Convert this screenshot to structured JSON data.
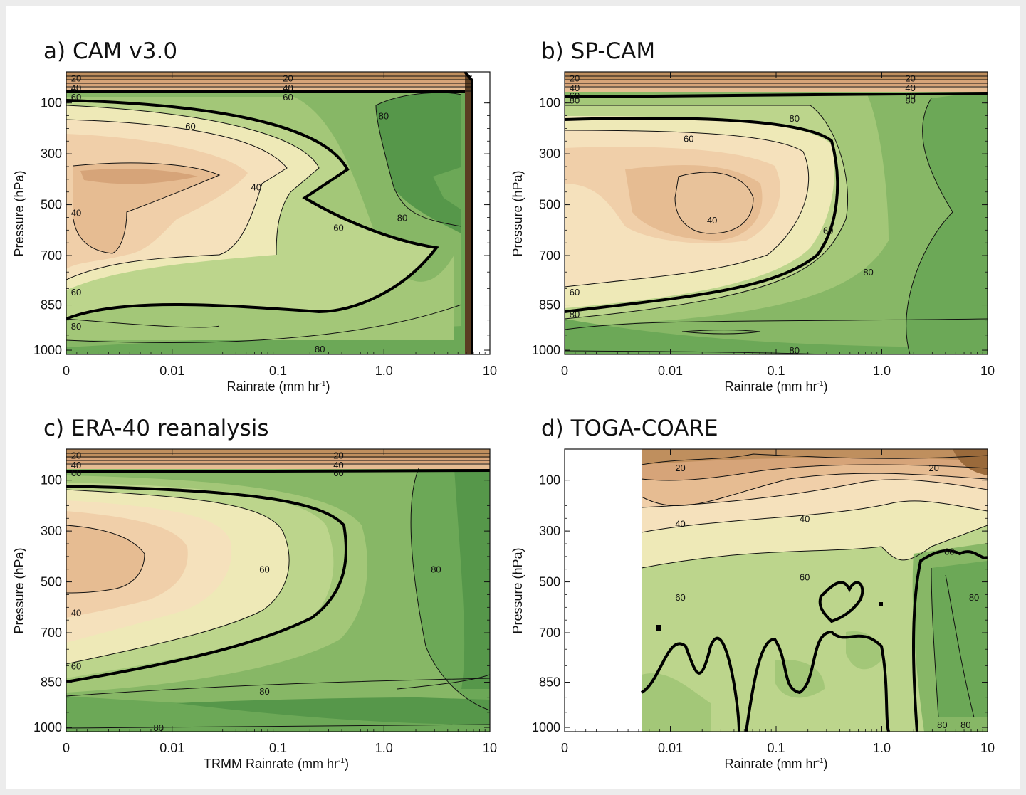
{
  "chart_data": [
    {
      "type": "contour",
      "title": "a)  CAM v3.0",
      "xlabel": "Rainrate (mm hr",
      "xlabel_sup": "-1",
      "xlabel_end": ")",
      "ylabel": "Pressure (hPa)",
      "x_ticks": [
        "0",
        "0.01",
        "0.1",
        "1.0",
        "10"
      ],
      "y_ticks": [
        "100",
        "300",
        "500",
        "700",
        "850",
        "1000"
      ],
      "contour_levels": [
        20,
        40,
        60,
        80
      ],
      "labels": [
        {
          "text": "20",
          "x": 0,
          "y": 60
        },
        {
          "text": "20",
          "x": 0.1,
          "y": 60
        },
        {
          "text": "40",
          "x": 0,
          "y": 75
        },
        {
          "text": "40",
          "x": 0.1,
          "y": 75
        },
        {
          "text": "60",
          "x": 0,
          "y": 90
        },
        {
          "text": "60",
          "x": 0.1,
          "y": 90
        },
        {
          "text": "80",
          "x": 0.8,
          "y": 150
        },
        {
          "text": "60",
          "x": 0.012,
          "y": 190
        },
        {
          "text": "40",
          "x": 0.05,
          "y": 430
        },
        {
          "text": "40",
          "x": 0,
          "y": 530
        },
        {
          "text": "60",
          "x": 0.3,
          "y": 590
        },
        {
          "text": "80",
          "x": 1.2,
          "y": 550
        },
        {
          "text": "60",
          "x": 0,
          "y": 810
        },
        {
          "text": "80",
          "x": 0,
          "y": 920
        },
        {
          "text": "80",
          "x": 0.2,
          "y": 995
        }
      ]
    },
    {
      "type": "contour",
      "title": "b)  SP-CAM",
      "xlabel": "Rainrate (mm hr",
      "xlabel_sup": "-1",
      "xlabel_end": ")",
      "ylabel": "Pressure (hPa)",
      "x_ticks": [
        "0",
        "0.01",
        "0.1",
        "1.0",
        "10"
      ],
      "y_ticks": [
        "100",
        "300",
        "500",
        "700",
        "850",
        "1000"
      ],
      "contour_levels": [
        20,
        40,
        60,
        80
      ],
      "labels": [
        {
          "text": "20",
          "x": 0,
          "y": 60
        },
        {
          "text": "20",
          "x": 1.5,
          "y": 60
        },
        {
          "text": "40",
          "x": 0,
          "y": 75
        },
        {
          "text": "40",
          "x": 1.5,
          "y": 75
        },
        {
          "text": "60",
          "x": 0,
          "y": 88
        },
        {
          "text": "60",
          "x": 1.5,
          "y": 88
        },
        {
          "text": "80",
          "x": 0,
          "y": 95
        },
        {
          "text": "80",
          "x": 1.5,
          "y": 95
        },
        {
          "text": "80",
          "x": 0.12,
          "y": 160
        },
        {
          "text": "60",
          "x": 0.012,
          "y": 240
        },
        {
          "text": "40",
          "x": 0.02,
          "y": 560
        },
        {
          "text": "60",
          "x": 0.25,
          "y": 600
        },
        {
          "text": "80",
          "x": 0.6,
          "y": 750
        },
        {
          "text": "60",
          "x": 0,
          "y": 810
        },
        {
          "text": "80",
          "x": 0,
          "y": 880
        },
        {
          "text": "80",
          "x": 0.12,
          "y": 1000
        }
      ]
    },
    {
      "type": "contour",
      "title": "c)  ERA-40 reanalysis",
      "xlabel": "TRMM Rainrate (mm hr",
      "xlabel_sup": "-1",
      "xlabel_end": ")",
      "ylabel": "Pressure (hPa)",
      "x_ticks": [
        "0",
        "0.01",
        "0.1",
        "1.0",
        "10"
      ],
      "y_ticks": [
        "100",
        "300",
        "500",
        "700",
        "850",
        "1000"
      ],
      "contour_levels": [
        20,
        40,
        60,
        80
      ],
      "labels": [
        {
          "text": "20",
          "x": 0,
          "y": 60
        },
        {
          "text": "20",
          "x": 0.3,
          "y": 60
        },
        {
          "text": "40",
          "x": 0,
          "y": 75
        },
        {
          "text": "40",
          "x": 0.3,
          "y": 75
        },
        {
          "text": "60",
          "x": 0,
          "y": 88
        },
        {
          "text": "60",
          "x": 0.3,
          "y": 88
        },
        {
          "text": "60",
          "x": 0.06,
          "y": 450
        },
        {
          "text": "80",
          "x": 2.5,
          "y": 450
        },
        {
          "text": "40",
          "x": 0,
          "y": 620
        },
        {
          "text": "60",
          "x": 0,
          "y": 800
        },
        {
          "text": "80",
          "x": 0.06,
          "y": 880
        },
        {
          "text": "80",
          "x": 0.006,
          "y": 1000
        }
      ]
    },
    {
      "type": "contour",
      "title": "d) TOGA-COARE",
      "xlabel": "Rainrate (mm hr",
      "xlabel_sup": "-1",
      "xlabel_end": ")",
      "ylabel": "Pressure (hPa)",
      "x_ticks": [
        "0",
        "0.01",
        "0.1",
        "1.0",
        "10"
      ],
      "y_ticks": [
        "100",
        "300",
        "500",
        "700",
        "850",
        "1000"
      ],
      "contour_levels": [
        20,
        40,
        60,
        80
      ],
      "labels": [
        {
          "text": "20",
          "x": 0.01,
          "y": 80
        },
        {
          "text": "20",
          "x": 2.5,
          "y": 80
        },
        {
          "text": "40",
          "x": 0.01,
          "y": 270
        },
        {
          "text": "40",
          "x": 0.15,
          "y": 250
        },
        {
          "text": "60",
          "x": 3.5,
          "y": 380
        },
        {
          "text": "60",
          "x": 0.15,
          "y": 480
        },
        {
          "text": "60",
          "x": 0.01,
          "y": 560
        },
        {
          "text": "80",
          "x": 6,
          "y": 560
        },
        {
          "text": "80",
          "x": 3,
          "y": 990
        },
        {
          "text": "80",
          "x": 5,
          "y": 990
        }
      ]
    }
  ],
  "colors": {
    "brown_dark": "#9a6a3b",
    "brown": "#bf8f5e",
    "tan_dark": "#d6a479",
    "tan": "#e6bc92",
    "peach": "#f0cfa9",
    "cream": "#f5e1bc",
    "pale_yellow": "#eee9b7",
    "yellow_green": "#d7e3a2",
    "light_green": "#bcd58c",
    "green_1": "#a3c778",
    "green_2": "#87b766",
    "green_3": "#6ca857",
    "green_4": "#56974a",
    "green_5": "#428940"
  }
}
